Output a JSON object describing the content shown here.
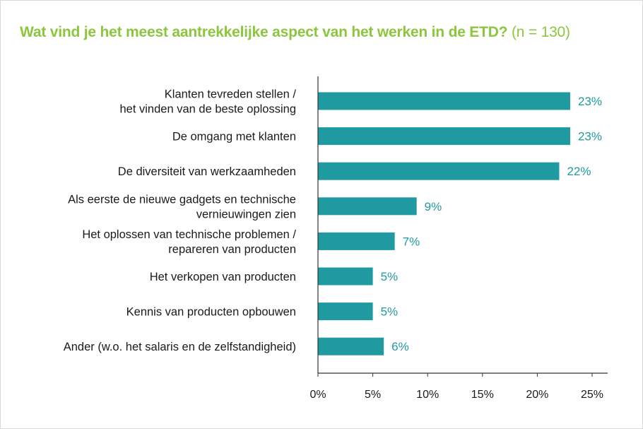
{
  "chart_data": {
    "type": "bar",
    "orientation": "horizontal",
    "title": "Wat vind je het meest aantrekkelijke aspect van het werken in de ETD?",
    "subtitle": "(n = 130)",
    "categories": [
      [
        "Klanten tevreden stellen /",
        "het vinden van de beste oplossing"
      ],
      [
        "De omgang met klanten"
      ],
      [
        "De diversiteit van werkzaamheden"
      ],
      [
        "Als eerste de nieuwe gadgets en technische",
        "vernieuwingen zien"
      ],
      [
        "Het oplossen van technische problemen /",
        "repareren van producten"
      ],
      [
        "Het verkopen van producten"
      ],
      [
        "Kennis van producten opbouwen"
      ],
      [
        "Ander (w.o. het salaris en de zelfstandigheid)"
      ]
    ],
    "values": [
      23,
      23,
      22,
      9,
      7,
      5,
      5,
      6
    ],
    "value_labels": [
      "23%",
      "23%",
      "22%",
      "9%",
      "7%",
      "5%",
      "5%",
      "6%"
    ],
    "xlim": [
      0,
      25
    ],
    "xticks": [
      0,
      5,
      10,
      15,
      20,
      25
    ],
    "xtick_labels": [
      "0%",
      "5%",
      "10%",
      "15%",
      "20%",
      "25%"
    ],
    "xlabel": "",
    "ylabel": "",
    "grid": false,
    "bar_color": "#1f9aa0",
    "value_label_color": "#1f9aa0",
    "title_color": "#8cc63e"
  }
}
